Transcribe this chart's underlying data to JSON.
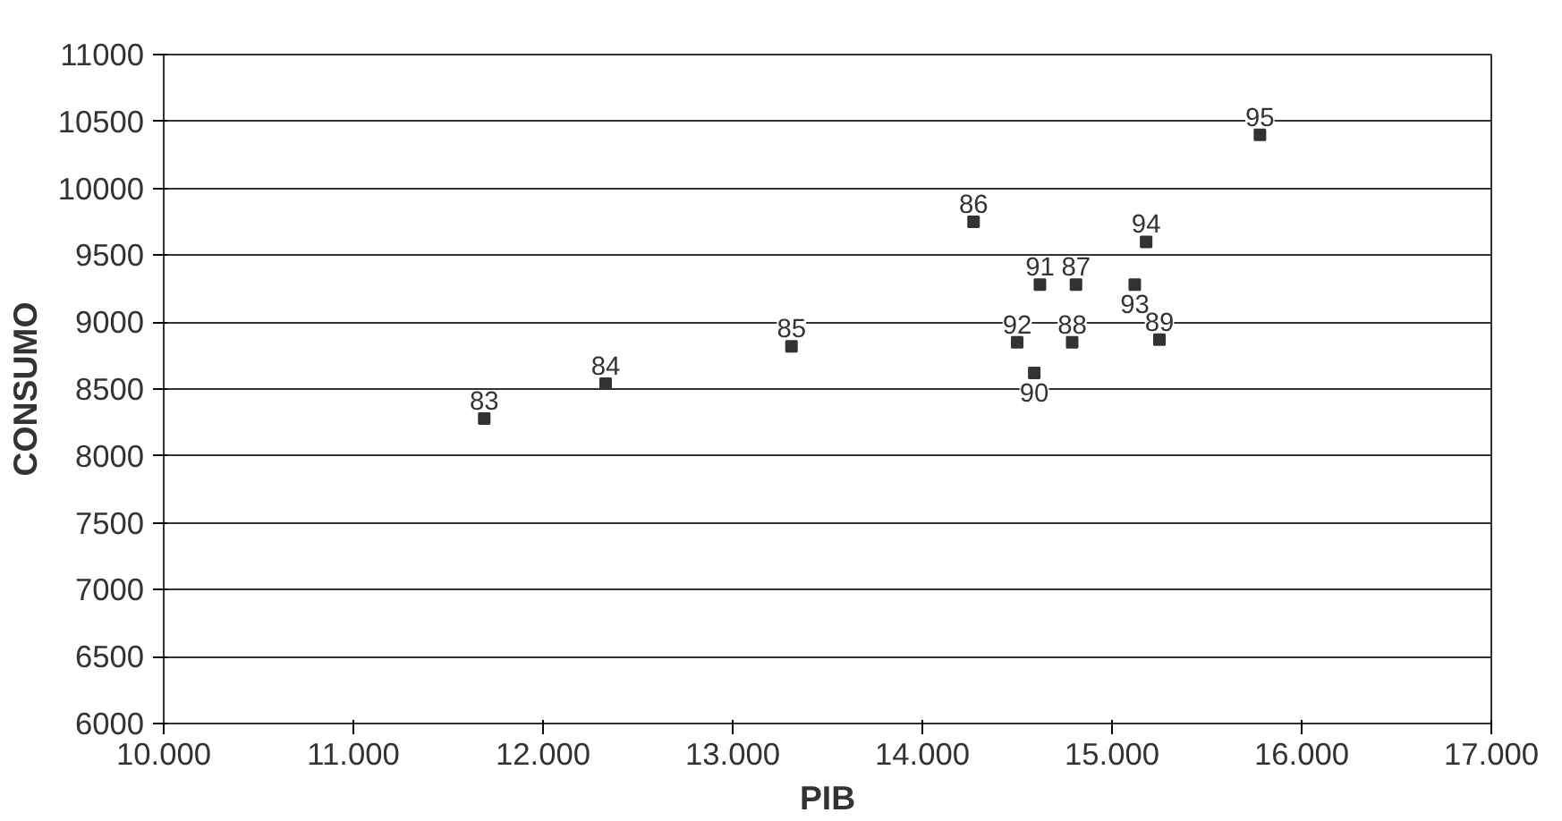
{
  "chart_data": {
    "type": "scatter",
    "xlabel": "PIB",
    "ylabel": "CONSUMO",
    "x": [
      11690,
      12330,
      13310,
      14270,
      14810,
      14790,
      15250,
      14590,
      14620,
      14500,
      15120,
      15180,
      15780
    ],
    "series": [
      {
        "color": "#333333",
        "values": [
          8280,
          8540,
          8820,
          9750,
          9280,
          8850,
          8870,
          8620,
          9280,
          8850,
          9280,
          9600,
          10400
        ]
      }
    ],
    "annotations": [
      {
        "text": "83",
        "x": 11690,
        "y": 8280
      },
      {
        "text": "84",
        "x": 12330,
        "y": 8540
      },
      {
        "text": "85",
        "x": 13310,
        "y": 8820
      },
      {
        "text": "86",
        "x": 14270,
        "y": 9750
      },
      {
        "text": "87",
        "x": 14810,
        "y": 9280
      },
      {
        "text": "88",
        "x": 14790,
        "y": 8850
      },
      {
        "text": "89",
        "x": 15250,
        "y": 8870
      },
      {
        "text": "90",
        "x": 14590,
        "y": 8620
      },
      {
        "text": "91",
        "x": 14620,
        "y": 9280
      },
      {
        "text": "92",
        "x": 14500,
        "y": 8850
      },
      {
        "text": "93",
        "x": 15120,
        "y": 9280
      },
      {
        "text": "94",
        "x": 15180,
        "y": 9600
      },
      {
        "text": "95",
        "x": 15780,
        "y": 10400
      }
    ],
    "marker": "square",
    "grid": "y",
    "xlim": [
      10000,
      17000
    ],
    "xticks": [
      {
        "value": 10000,
        "label": "10.000"
      },
      {
        "value": 11000,
        "label": "11.000"
      },
      {
        "value": 12000,
        "label": "12.000"
      },
      {
        "value": 13000,
        "label": "13.000"
      },
      {
        "value": 14000,
        "label": "14.000"
      },
      {
        "value": 15000,
        "label": "15.000"
      },
      {
        "value": 16000,
        "label": "16.000"
      },
      {
        "value": 17000,
        "label": "17.000"
      }
    ],
    "ylim": [
      6000,
      11000
    ],
    "yticks": [
      6000,
      6500,
      7000,
      7500,
      8000,
      8500,
      9000,
      9500,
      10000,
      10500,
      11000
    ]
  }
}
